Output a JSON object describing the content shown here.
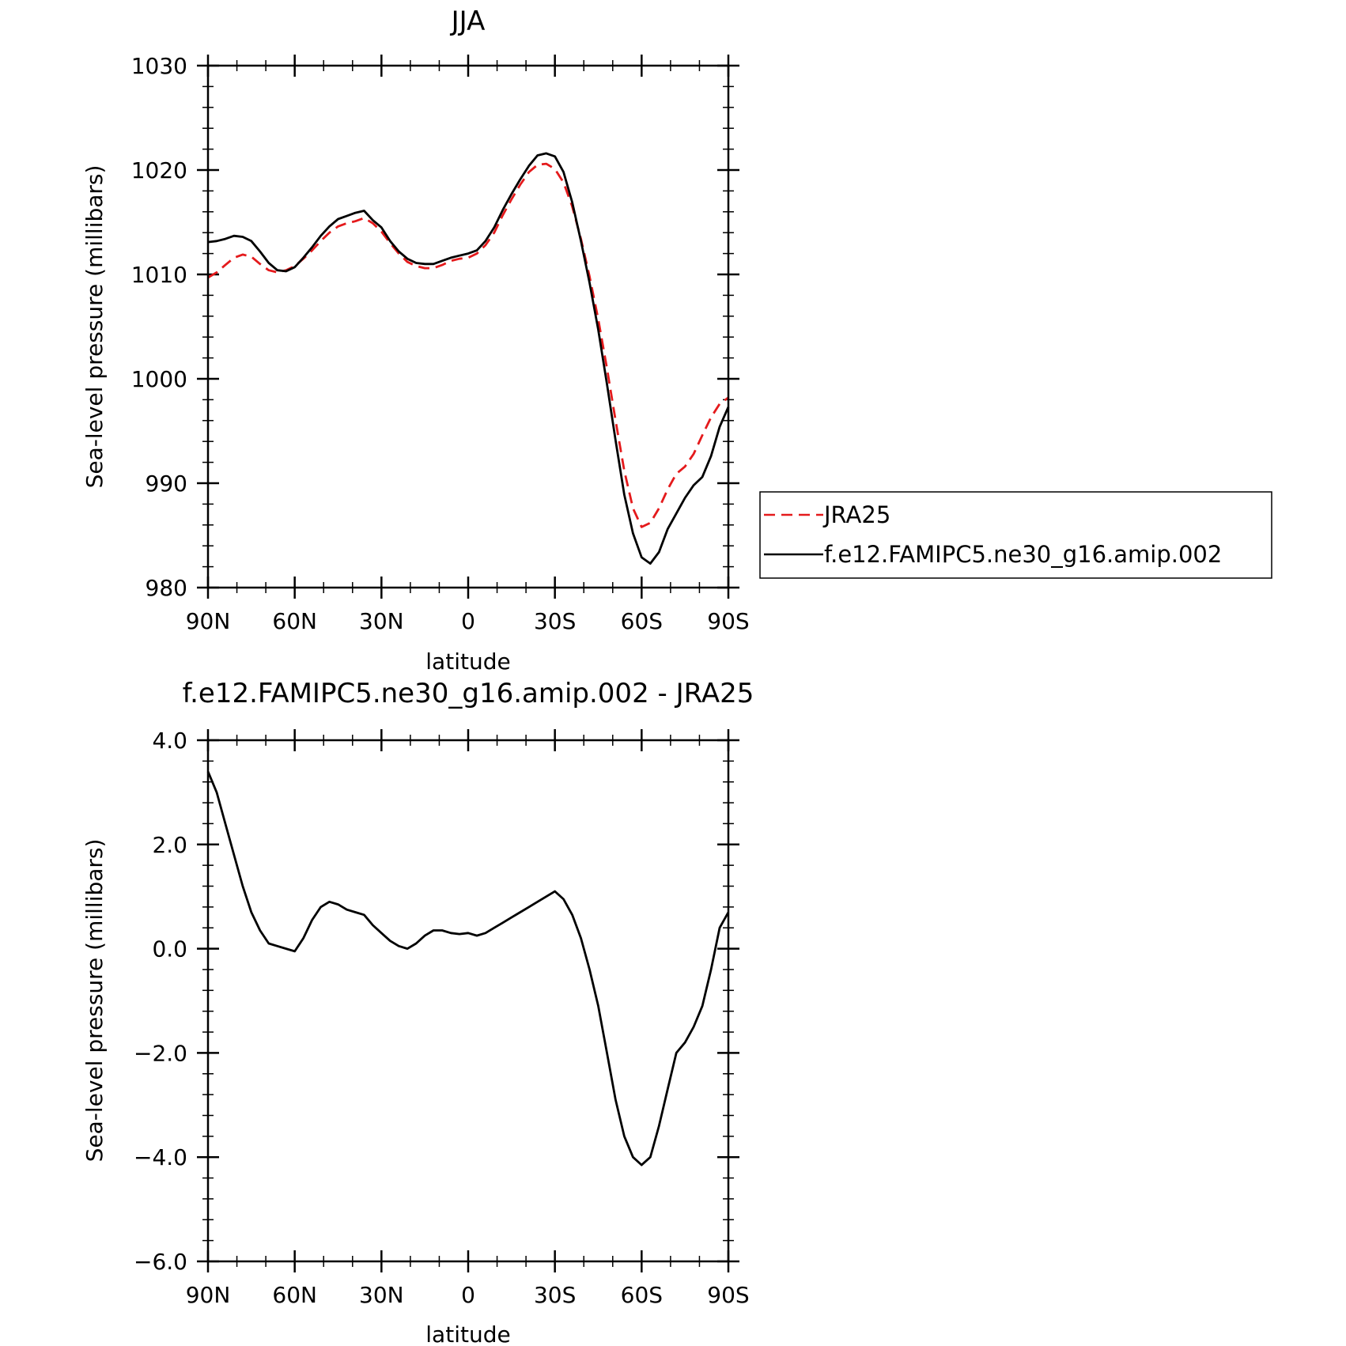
{
  "charts": [
    {
      "type": "line",
      "title": "JJA",
      "xlabel": "latitude",
      "ylabel": "Sea-level pressure (millibars)",
      "xlim": [
        90,
        -90
      ],
      "ylim": [
        980,
        1030
      ],
      "x_ticks": [
        {
          "value": 90,
          "label": "90N"
        },
        {
          "value": 60,
          "label": "60N"
        },
        {
          "value": 30,
          "label": "30N"
        },
        {
          "value": 0,
          "label": "0"
        },
        {
          "value": -30,
          "label": "30S"
        },
        {
          "value": -60,
          "label": "60S"
        },
        {
          "value": -90,
          "label": "90S"
        }
      ],
      "y_ticks": [
        {
          "value": 980,
          "label": "980"
        },
        {
          "value": 990,
          "label": "990"
        },
        {
          "value": 1000,
          "label": "1000"
        },
        {
          "value": 1010,
          "label": "1010"
        },
        {
          "value": 1020,
          "label": "1020"
        },
        {
          "value": 1030,
          "label": "1030"
        }
      ],
      "legend": {
        "placement": "right",
        "entries": [
          {
            "name": "JRA25",
            "style": "dashed",
            "color": "#e41a1c"
          },
          {
            "name": "f.e12.FAMIPC5.ne30_g16.amip.002",
            "style": "solid",
            "color": "#000000"
          }
        ]
      },
      "series": [
        {
          "name": "JRA25",
          "color": "#e41a1c",
          "style": "dashed",
          "x": [
            90,
            87,
            84,
            81,
            78,
            75,
            72,
            69,
            66,
            63,
            60,
            57,
            54,
            51,
            48,
            45,
            42,
            39,
            36,
            33,
            30,
            27,
            24,
            21,
            18,
            15,
            12,
            9,
            6,
            3,
            0,
            -3,
            -6,
            -9,
            -12,
            -15,
            -18,
            -21,
            -24,
            -27,
            -30,
            -33,
            -36,
            -39,
            -42,
            -45,
            -48,
            -51,
            -54,
            -57,
            -60,
            -63,
            -66,
            -69,
            -72,
            -75,
            -78,
            -81,
            -84,
            -87,
            -90
          ],
          "y": [
            1009.7,
            1010.2,
            1010.9,
            1011.6,
            1011.9,
            1011.7,
            1011.0,
            1010.4,
            1010.2,
            1010.4,
            1010.8,
            1011.5,
            1012.3,
            1013.2,
            1014.0,
            1014.6,
            1014.9,
            1015.1,
            1015.4,
            1014.9,
            1014.1,
            1013.0,
            1012.0,
            1011.2,
            1010.8,
            1010.6,
            1010.6,
            1010.9,
            1011.3,
            1011.5,
            1011.6,
            1012.0,
            1012.8,
            1014.0,
            1015.7,
            1017.2,
            1018.6,
            1019.8,
            1020.5,
            1020.6,
            1020.1,
            1018.8,
            1016.5,
            1013.4,
            1009.8,
            1005.7,
            1001.0,
            996.0,
            991.2,
            987.6,
            985.8,
            986.2,
            987.6,
            989.4,
            990.9,
            991.6,
            992.8,
            994.6,
            996.3,
            997.6,
            998.2
          ]
        },
        {
          "name": "f.e12.FAMIPC5.ne30_g16.amip.002",
          "color": "#000000",
          "style": "solid",
          "x": [
            90,
            87,
            84,
            81,
            78,
            75,
            72,
            69,
            66,
            63,
            60,
            57,
            54,
            51,
            48,
            45,
            42,
            39,
            36,
            33,
            30,
            27,
            24,
            21,
            18,
            15,
            12,
            9,
            6,
            3,
            0,
            -3,
            -6,
            -9,
            -12,
            -15,
            -18,
            -21,
            -24,
            -27,
            -30,
            -33,
            -36,
            -39,
            -42,
            -45,
            -48,
            -51,
            -54,
            -57,
            -60,
            -63,
            -66,
            -69,
            -72,
            -75,
            -78,
            -81,
            -84,
            -87,
            -90
          ],
          "y": [
            1013.1,
            1013.2,
            1013.4,
            1013.7,
            1013.6,
            1013.2,
            1012.2,
            1011.1,
            1010.4,
            1010.3,
            1010.7,
            1011.6,
            1012.6,
            1013.7,
            1014.6,
            1015.3,
            1015.6,
            1015.9,
            1016.1,
            1015.2,
            1014.5,
            1013.2,
            1012.2,
            1011.5,
            1011.1,
            1011.0,
            1011.0,
            1011.3,
            1011.6,
            1011.8,
            1012.0,
            1012.3,
            1013.2,
            1014.5,
            1016.2,
            1017.7,
            1019.1,
            1020.4,
            1021.4,
            1021.6,
            1021.3,
            1019.8,
            1016.9,
            1013.2,
            1009.2,
            1004.7,
            999.5,
            994.1,
            988.9,
            985.2,
            982.9,
            982.3,
            983.4,
            985.6,
            987.1,
            988.6,
            989.8,
            990.6,
            992.6,
            995.4,
            997.3
          ]
        }
      ]
    },
    {
      "type": "line",
      "title": "f.e12.FAMIPC5.ne30_g16.amip.002 - JRA25",
      "xlabel": "latitude",
      "ylabel": "Sea-level pressure (millibars)",
      "xlim": [
        90,
        -90
      ],
      "ylim": [
        -6.0,
        4.0
      ],
      "x_ticks": [
        {
          "value": 90,
          "label": "90N"
        },
        {
          "value": 60,
          "label": "60N"
        },
        {
          "value": 30,
          "label": "30N"
        },
        {
          "value": 0,
          "label": "0"
        },
        {
          "value": -30,
          "label": "30S"
        },
        {
          "value": -60,
          "label": "60S"
        },
        {
          "value": -90,
          "label": "90S"
        }
      ],
      "y_ticks": [
        {
          "value": -6,
          "label": "-6.0"
        },
        {
          "value": -4,
          "label": "-4.0"
        },
        {
          "value": -2,
          "label": "-2.0"
        },
        {
          "value": 0,
          "label": "0.0"
        },
        {
          "value": 2,
          "label": "2.0"
        },
        {
          "value": 4,
          "label": "4.0"
        }
      ],
      "series": [
        {
          "name": "",
          "color": "#000000",
          "style": "solid",
          "x": [
            90,
            87,
            84,
            81,
            78,
            75,
            72,
            69,
            66,
            63,
            60,
            57,
            54,
            51,
            48,
            45,
            42,
            39,
            36,
            33,
            30,
            27,
            24,
            21,
            18,
            15,
            12,
            9,
            6,
            3,
            0,
            -3,
            -6,
            -9,
            -12,
            -15,
            -18,
            -21,
            -24,
            -27,
            -30,
            -33,
            -36,
            -39,
            -42,
            -45,
            -48,
            -51,
            -54,
            -57,
            -60,
            -63,
            -66,
            -69,
            -72,
            -75,
            -78,
            -81,
            -84,
            -87,
            -90
          ],
          "y": [
            3.4,
            3.0,
            2.4,
            1.8,
            1.2,
            0.7,
            0.35,
            0.1,
            0.05,
            0.0,
            -0.05,
            0.2,
            0.55,
            0.8,
            0.9,
            0.85,
            0.75,
            0.7,
            0.65,
            0.45,
            0.3,
            0.15,
            0.05,
            0.0,
            0.1,
            0.25,
            0.35,
            0.35,
            0.3,
            0.28,
            0.3,
            0.25,
            0.3,
            0.4,
            0.5,
            0.6,
            0.7,
            0.8,
            0.9,
            1.0,
            1.1,
            0.95,
            0.65,
            0.2,
            -0.4,
            -1.1,
            -2.0,
            -2.9,
            -3.6,
            -4.0,
            -4.15,
            -4.0,
            -3.4,
            -2.7,
            -2.0,
            -1.8,
            -1.5,
            -1.1,
            -0.4,
            0.4,
            0.7
          ]
        }
      ]
    }
  ]
}
